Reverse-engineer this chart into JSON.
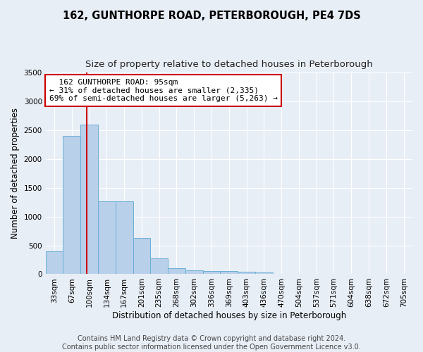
{
  "title": "162, GUNTHORPE ROAD, PETERBOROUGH, PE4 7DS",
  "subtitle": "Size of property relative to detached houses in Peterborough",
  "xlabel": "Distribution of detached houses by size in Peterborough",
  "ylabel": "Number of detached properties",
  "footer_line1": "Contains HM Land Registry data © Crown copyright and database right 2024.",
  "footer_line2": "Contains public sector information licensed under the Open Government Licence v3.0.",
  "bin_labels": [
    "33sqm",
    "67sqm",
    "100sqm",
    "134sqm",
    "167sqm",
    "201sqm",
    "235sqm",
    "268sqm",
    "302sqm",
    "336sqm",
    "369sqm",
    "403sqm",
    "436sqm",
    "470sqm",
    "504sqm",
    "537sqm",
    "571sqm",
    "604sqm",
    "638sqm",
    "672sqm",
    "705sqm"
  ],
  "bar_values": [
    400,
    2400,
    2600,
    1260,
    1260,
    630,
    280,
    100,
    65,
    55,
    55,
    40,
    30,
    0,
    0,
    0,
    0,
    0,
    0,
    0,
    0
  ],
  "bar_color": "#b8d0ea",
  "bar_edge_color": "#6aaed6",
  "vline_bin_index": 1.87,
  "vline_color": "#cc0000",
  "annotation_text": "  162 GUNTHORPE ROAD: 95sqm\n← 31% of detached houses are smaller (2,335)\n69% of semi-detached houses are larger (5,263) →",
  "ylim": [
    0,
    3500
  ],
  "yticks": [
    0,
    500,
    1000,
    1500,
    2000,
    2500,
    3000,
    3500
  ],
  "bg_color": "#e8eef6",
  "plot_bg_color": "#e8eef6",
  "grid_color": "#ffffff",
  "title_fontsize": 10.5,
  "subtitle_fontsize": 9.5,
  "axis_label_fontsize": 8.5,
  "tick_fontsize": 7.5,
  "footer_fontsize": 7
}
